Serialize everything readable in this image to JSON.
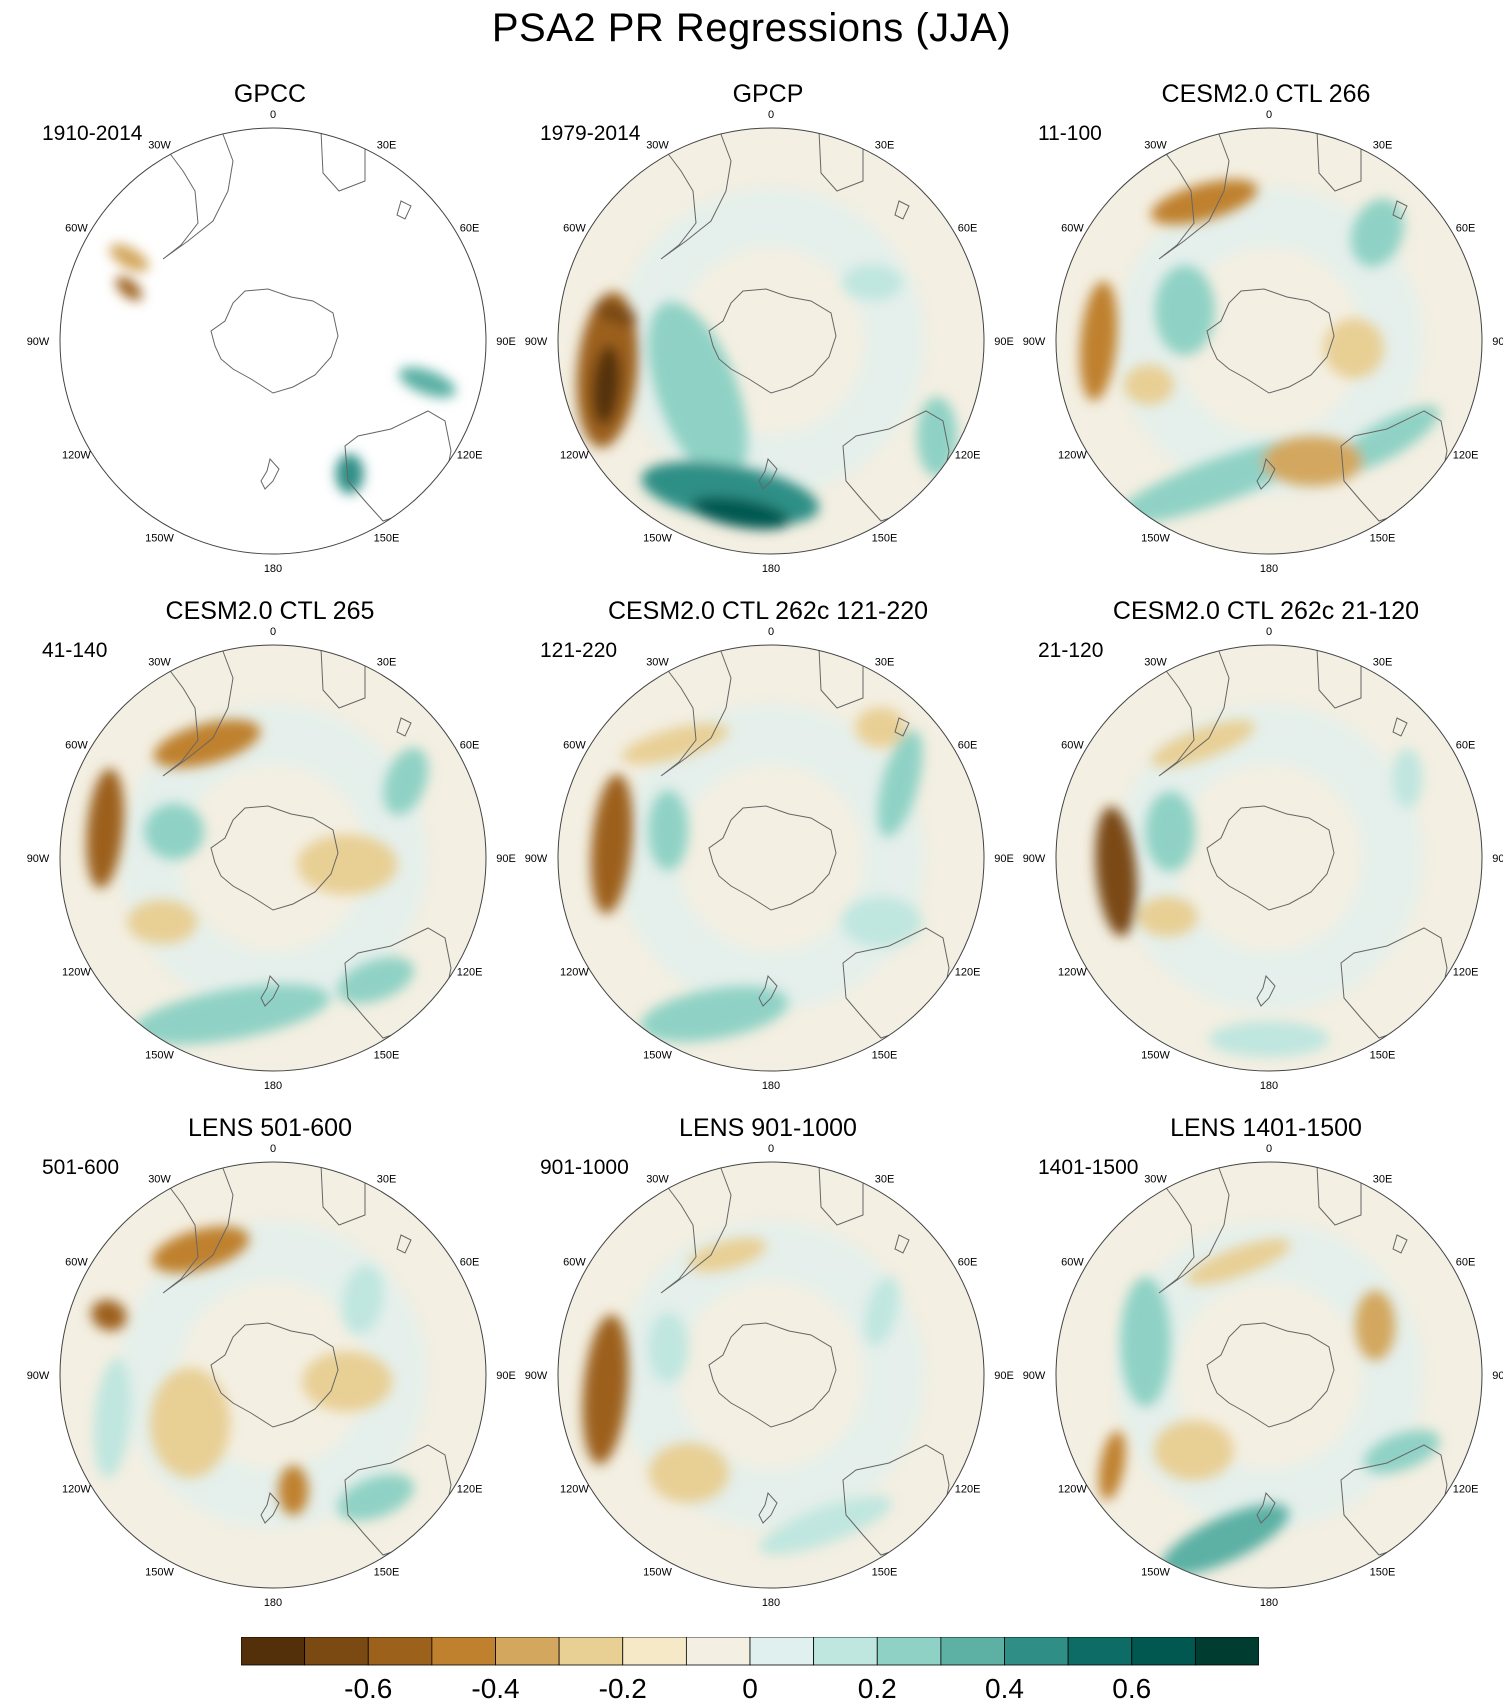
{
  "title": "PSA2 PR Regressions (JJA)",
  "longitude_labels": [
    "0",
    "30E",
    "60E",
    "90E",
    "120E",
    "150E",
    "180",
    "150W",
    "120W",
    "90W",
    "60W",
    "30W"
  ],
  "panels": [
    {
      "title": "GPCC",
      "period": "1910-2014",
      "coverage": "land-only"
    },
    {
      "title": "GPCP",
      "period": "1979-2014",
      "coverage": "global"
    },
    {
      "title": "CESM2.0 CTL 266",
      "period": "11-100",
      "coverage": "global"
    },
    {
      "title": "CESM2.0 CTL 265",
      "period": "41-140",
      "coverage": "global"
    },
    {
      "title": "CESM2.0 CTL 262c 121-220",
      "period": "121-220",
      "coverage": "global"
    },
    {
      "title": "CESM2.0 CTL 262c 21-120",
      "period": "21-120",
      "coverage": "global"
    },
    {
      "title": "LENS 501-600",
      "period": "501-600",
      "coverage": "global"
    },
    {
      "title": "LENS 901-1000",
      "period": "901-1000",
      "coverage": "global"
    },
    {
      "title": "LENS 1401-1500",
      "period": "1401-1500",
      "coverage": "global"
    }
  ],
  "colorbar": {
    "tick_labels": [
      "-0.6",
      "-0.4",
      "-0.2",
      "0",
      "0.2",
      "0.4",
      "0.6"
    ],
    "tick_values": [
      -0.6,
      -0.4,
      -0.2,
      0,
      0.2,
      0.4,
      0.6
    ],
    "levels": [
      -0.7,
      -0.6,
      -0.5,
      -0.4,
      -0.3,
      -0.2,
      -0.1,
      0,
      0.1,
      0.2,
      0.3,
      0.4,
      0.5,
      0.6,
      0.7
    ],
    "colors": [
      "#54300a",
      "#7a4a12",
      "#9c611a",
      "#bf812d",
      "#d3a75e",
      "#e8cf94",
      "#f5e9c8",
      "#f3efe2",
      "#e0f0ef",
      "#bfe6df",
      "#8fd2c5",
      "#5cb0a4",
      "#2f8f86",
      "#0d6d66",
      "#015851",
      "#003c30"
    ]
  },
  "style": {
    "coast_color": "#666666",
    "border_color": "#444444",
    "background_field": "#f3efe2"
  }
}
